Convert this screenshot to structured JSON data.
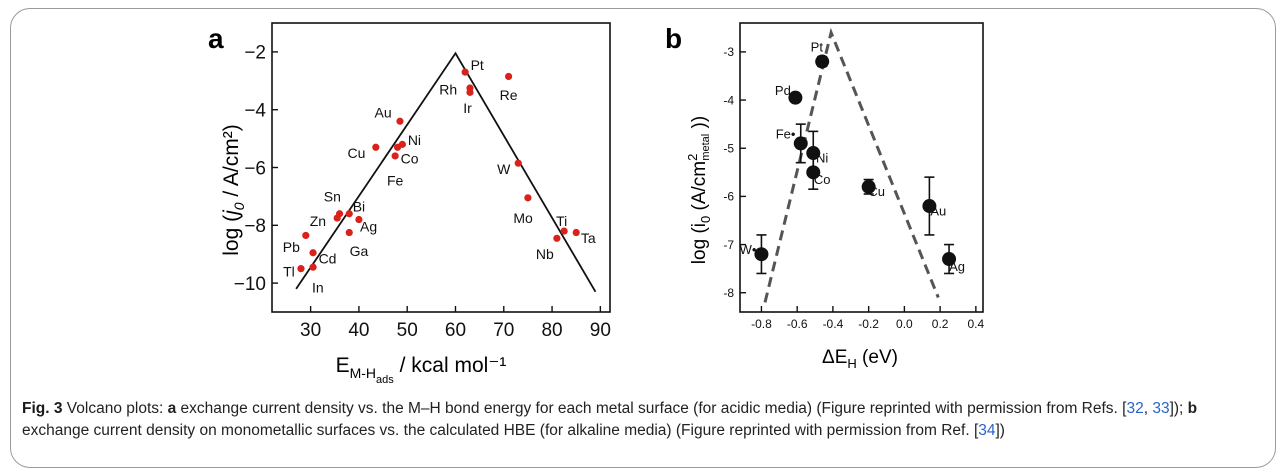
{
  "chart_data": [
    {
      "type": "scatter",
      "panel_label": "a",
      "xlabel": "E",
      "xlabel_sub": "M-H",
      "xlabel_subsub": "ads",
      "xlabel_tail": " / kcal mol⁻¹",
      "ylabel_prefix": "log (",
      "ylabel_j": "j",
      "ylabel_sub": "0",
      "ylabel_tail": " / A/cm²)",
      "xlim": [
        22,
        92
      ],
      "ylim": [
        -11,
        -1
      ],
      "xticks": [
        30,
        40,
        50,
        60,
        70,
        80,
        90
      ],
      "yticks": [
        -2,
        -4,
        -6,
        -8,
        -10
      ],
      "ytick_labels": [
        "−2",
        "−4",
        "−6",
        "−8",
        "−10"
      ],
      "marker_color": "#d9221b",
      "volcano_line": [
        [
          27,
          -10.2
        ],
        [
          60,
          -2.05
        ],
        [
          89,
          -10.3
        ]
      ],
      "points": [
        {
          "label": "Pt",
          "x": 62,
          "y": -2.7,
          "lx": 64.5,
          "ly": -2.45
        },
        {
          "label": "Rh",
          "x": 63,
          "y": -3.25,
          "lx": 58.5,
          "ly": -3.3
        },
        {
          "label": "Ir",
          "x": 63,
          "y": -3.4,
          "lx": 62.5,
          "ly": -3.95
        },
        {
          "label": "Re",
          "x": 71,
          "y": -2.85,
          "lx": 71,
          "ly": -3.5
        },
        {
          "label": "Au",
          "x": 48.5,
          "y": -4.4,
          "lx": 45,
          "ly": -4.1
        },
        {
          "label": "Ni",
          "x": 49,
          "y": -5.2,
          "lx": 51.5,
          "ly": -5.05
        },
        {
          "label": "Co",
          "x": 48,
          "y": -5.3,
          "lx": 50.5,
          "ly": -5.7
        },
        {
          "label": "Cu",
          "x": 43.5,
          "y": -5.3,
          "lx": 39.5,
          "ly": -5.5
        },
        {
          "label": "Fe",
          "x": 47.5,
          "y": -5.6,
          "lx": 47.5,
          "ly": -6.45
        },
        {
          "label": "W",
          "x": 73,
          "y": -5.85,
          "lx": 70,
          "ly": -6.05
        },
        {
          "label": "Sn",
          "x": 36,
          "y": -7.6,
          "lx": 34.5,
          "ly": -7.0
        },
        {
          "label": "Bi",
          "x": 38,
          "y": -7.6,
          "lx": 40,
          "ly": -7.35
        },
        {
          "label": "Zn",
          "x": 35.5,
          "y": -7.75,
          "lx": 31.5,
          "ly": -7.85
        },
        {
          "label": "Ag",
          "x": 40,
          "y": -7.8,
          "lx": 42,
          "ly": -8.05
        },
        {
          "label": "Mo",
          "x": 75,
          "y": -7.05,
          "lx": 74,
          "ly": -7.75
        },
        {
          "label": "Ga",
          "x": 38,
          "y": -8.25,
          "lx": 40,
          "ly": -8.9
        },
        {
          "label": "Pb",
          "x": 29,
          "y": -8.35,
          "lx": 26,
          "ly": -8.75
        },
        {
          "label": "Cd",
          "x": 30.5,
          "y": -8.95,
          "lx": 33.5,
          "ly": -9.15
        },
        {
          "label": "Ti",
          "x": 82.5,
          "y": -8.2,
          "lx": 82,
          "ly": -7.85
        },
        {
          "label": "Ta",
          "x": 85,
          "y": -8.25,
          "lx": 87.5,
          "ly": -8.45
        },
        {
          "label": "Nb",
          "x": 81,
          "y": -8.45,
          "lx": 78.5,
          "ly": -9.0
        },
        {
          "label": "Tl",
          "x": 28,
          "y": -9.5,
          "lx": 25.5,
          "ly": -9.6
        },
        {
          "label": "In",
          "x": 30.5,
          "y": -9.45,
          "lx": 31.5,
          "ly": -10.15
        }
      ]
    },
    {
      "type": "scatter",
      "panel_label": "b",
      "xlabel": "ΔE",
      "xlabel_sub": "H",
      "xlabel_tail": " (eV)",
      "ylabel_prefix": "log (i",
      "ylabel_sub": "0",
      "ylabel_mid": " (A/cm",
      "ylabel_sup": "2",
      "ylabel_subsub": "metal",
      "ylabel_tail": " ))",
      "xlim": [
        -0.92,
        0.44
      ],
      "ylim": [
        -8.4,
        -2.4
      ],
      "xticks": [
        -0.8,
        -0.6,
        -0.4,
        -0.2,
        0.0,
        0.2,
        0.4
      ],
      "xtick_labels": [
        "-0.8",
        "-0.6",
        "-0.4",
        "-0.2",
        "0.0",
        "0.2",
        "0.4"
      ],
      "yticks": [
        -3,
        -4,
        -5,
        -6,
        -7,
        -8
      ],
      "ytick_labels": [
        "-3",
        "-4",
        "-5",
        "-6",
        "-7",
        "-8"
      ],
      "marker_color": "#111111",
      "volcano_line": [
        [
          -0.78,
          -8.2
        ],
        [
          -0.41,
          -2.6
        ],
        [
          0.19,
          -8.1
        ]
      ],
      "points": [
        {
          "label": "Pt",
          "x": -0.46,
          "y": -3.2,
          "err": 0.1,
          "lx": -0.49,
          "ly": -2.9
        },
        {
          "label": "Pd",
          "x": -0.61,
          "y": -3.95,
          "err": 0,
          "lx": -0.68,
          "ly": -3.8
        },
        {
          "label": "Fe•",
          "x": -0.58,
          "y": -4.9,
          "err": 0.4,
          "lx": -0.665,
          "ly": -4.7
        },
        {
          "label": "Ni",
          "x": -0.51,
          "y": -5.1,
          "err": 0.45,
          "lx": -0.46,
          "ly": -5.2
        },
        {
          "label": "Co",
          "x": -0.51,
          "y": -5.5,
          "err": 0.35,
          "lx": -0.46,
          "ly": -5.65
        },
        {
          "label": "Cu",
          "x": -0.2,
          "y": -5.8,
          "err": 0.15,
          "lx": -0.155,
          "ly": -5.9
        },
        {
          "label": "Au",
          "x": 0.14,
          "y": -6.2,
          "err": 0.6,
          "lx": 0.19,
          "ly": -6.3
        },
        {
          "label": "W•",
          "x": -0.8,
          "y": -7.2,
          "err": 0.4,
          "lx": -0.875,
          "ly": -7.1
        },
        {
          "label": "Ag",
          "x": 0.25,
          "y": -7.3,
          "err": 0.3,
          "lx": 0.295,
          "ly": -7.45
        }
      ]
    }
  ],
  "caption": {
    "fig_label": "Fig. 3",
    "t1": "  Volcano plots: ",
    "a_label": "a",
    "t2": " exchange current density vs. the M–H bond energy for each metal surface (for acidic media) (Figure reprinted with permission from Refs. [",
    "ref1": "32",
    "t3": ", ",
    "ref2": "33",
    "t4": "]); ",
    "b_label": "b",
    "t5": " exchange current density on monometallic surfaces vs. the calculated HBE (for alkaline media) (Figure reprinted with permission from Ref. [",
    "ref3": "34",
    "t6": "])"
  }
}
